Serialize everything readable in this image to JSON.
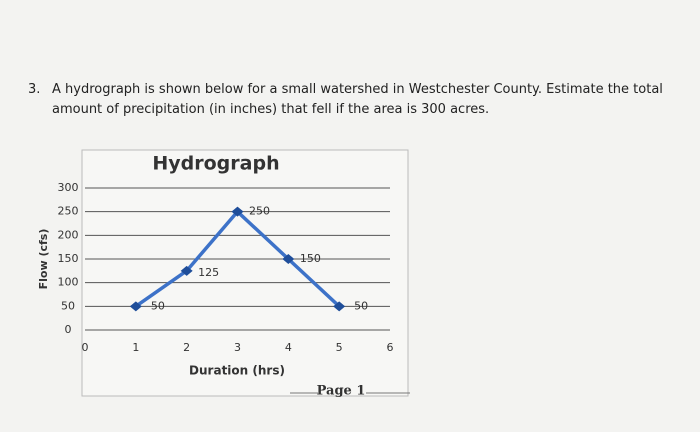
{
  "question": {
    "number": "3.",
    "text": "A hydrograph is shown below for a small watershed in Westchester County. Estimate the total amount of precipitation (in inches) that fell if the area is 300 acres."
  },
  "chart_data": {
    "type": "line",
    "title": "Hydrograph",
    "x_label": "Duration (hrs)",
    "y_label": "Flow (cfs)",
    "x": [
      1,
      2,
      3,
      4,
      5
    ],
    "values": [
      50,
      125,
      250,
      150,
      50
    ],
    "color": "#3d72c8",
    "marker_color": "#1f4e9a",
    "xlim": [
      0,
      6
    ],
    "xticks": [
      0,
      1,
      2,
      3,
      4,
      5,
      6
    ],
    "ylim": [
      0,
      300
    ],
    "yticks": [
      0,
      50,
      100,
      150,
      200,
      250,
      300
    ],
    "grid": true
  },
  "footer": "Page 1"
}
